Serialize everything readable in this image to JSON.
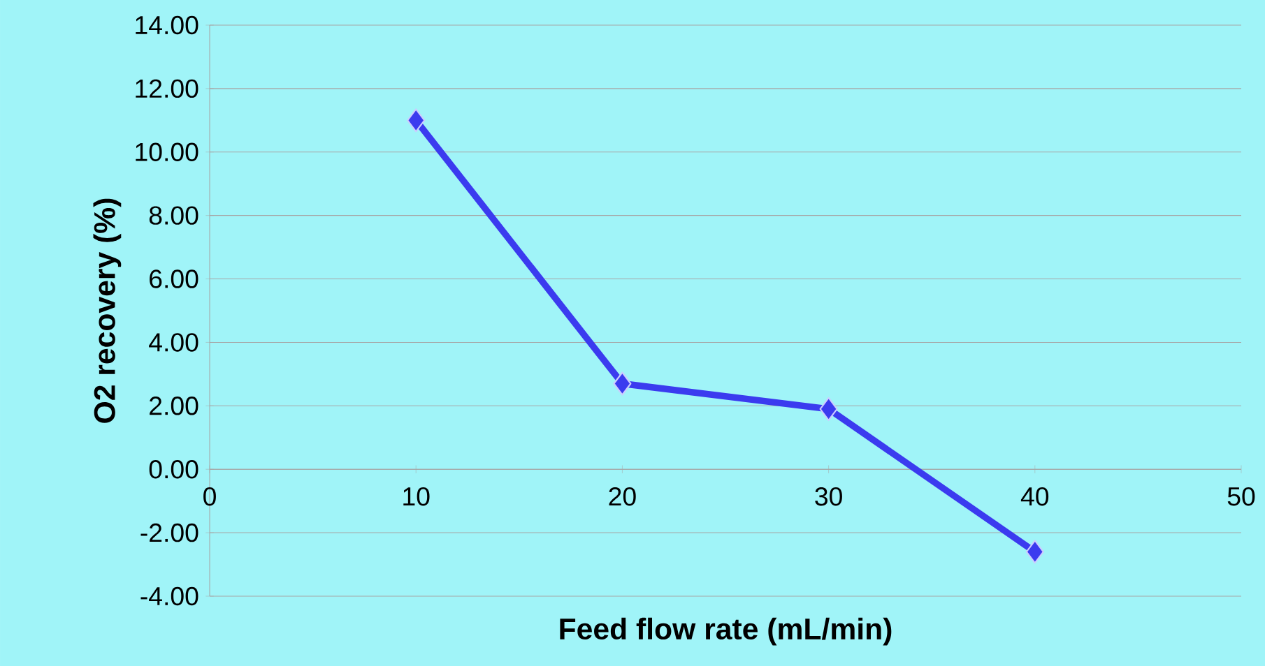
{
  "chart_data": {
    "type": "line",
    "xlabel": "Feed flow rate (mL/min)",
    "ylabel": "O2 recovery (%)",
    "x": [
      10,
      20,
      30,
      40
    ],
    "series": [
      {
        "color": "#3b3bef",
        "values": [
          11.0,
          2.7,
          1.9,
          -2.6
        ]
      }
    ],
    "marker": "diamond",
    "line_style": "solid",
    "grid": "y",
    "xlim": [
      0,
      50
    ],
    "xticks": [
      0,
      10,
      20,
      30,
      40,
      50
    ],
    "ylim": [
      -4,
      14
    ],
    "yticks": [
      {
        "value": -4,
        "label": "-4.00"
      },
      {
        "value": -2,
        "label": "-2.00"
      },
      {
        "value": 0,
        "label": "0.00"
      },
      {
        "value": 2,
        "label": "2.00"
      },
      {
        "value": 4,
        "label": "4.00"
      },
      {
        "value": 6,
        "label": "6.00"
      },
      {
        "value": 8,
        "label": "8.00"
      },
      {
        "value": 10,
        "label": "10.00"
      },
      {
        "value": 12,
        "label": "12.00"
      },
      {
        "value": 14,
        "label": "14.00"
      }
    ]
  }
}
